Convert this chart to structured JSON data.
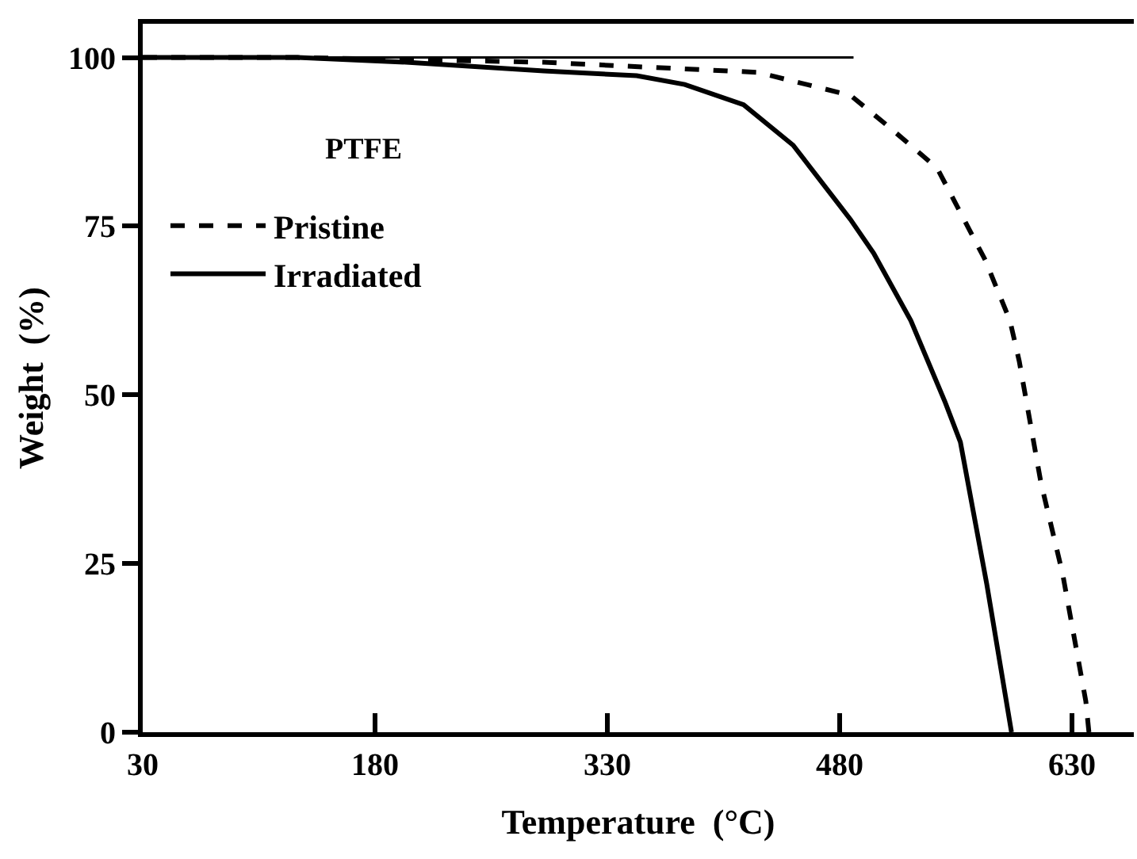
{
  "chart_data": {
    "type": "line",
    "xlabel": "Temperature  (°C)",
    "ylabel": "Weight  (%)",
    "annotations": [
      "PTFE"
    ],
    "xlim": [
      30,
      670
    ],
    "xticks": [
      30,
      180,
      330,
      480,
      630
    ],
    "ylim": [
      0,
      105
    ],
    "yticks": [
      0,
      25,
      50,
      75,
      100
    ],
    "legend": "top left",
    "marker": "none",
    "series": [
      {
        "name": "Pristine",
        "color": "#000000",
        "line_style": "dashed",
        "x": [
          30,
          130,
          289,
          427,
          487,
          513,
          543,
          574,
          590,
          596,
          610,
          624,
          639,
          641
        ],
        "values": [
          100,
          100,
          99.3,
          97.8,
          94.4,
          89.5,
          83.6,
          70,
          61,
          55,
          37,
          23.5,
          4.6,
          0
        ]
      },
      {
        "name": "Irradiated",
        "color": "#000000",
        "line_style": "solid",
        "x": [
          30,
          130,
          200,
          289,
          349,
          380,
          418,
          450,
          487,
          502,
          526,
          548,
          558,
          575,
          591
        ],
        "values": [
          100,
          100,
          99.3,
          98,
          97.3,
          96,
          93,
          87,
          76,
          71,
          61,
          49,
          43,
          22,
          0
        ]
      },
      {
        "color": "#000000",
        "line_style": "solid",
        "x": [
          30,
          489
        ],
        "values": [
          100,
          100
        ]
      }
    ]
  }
}
